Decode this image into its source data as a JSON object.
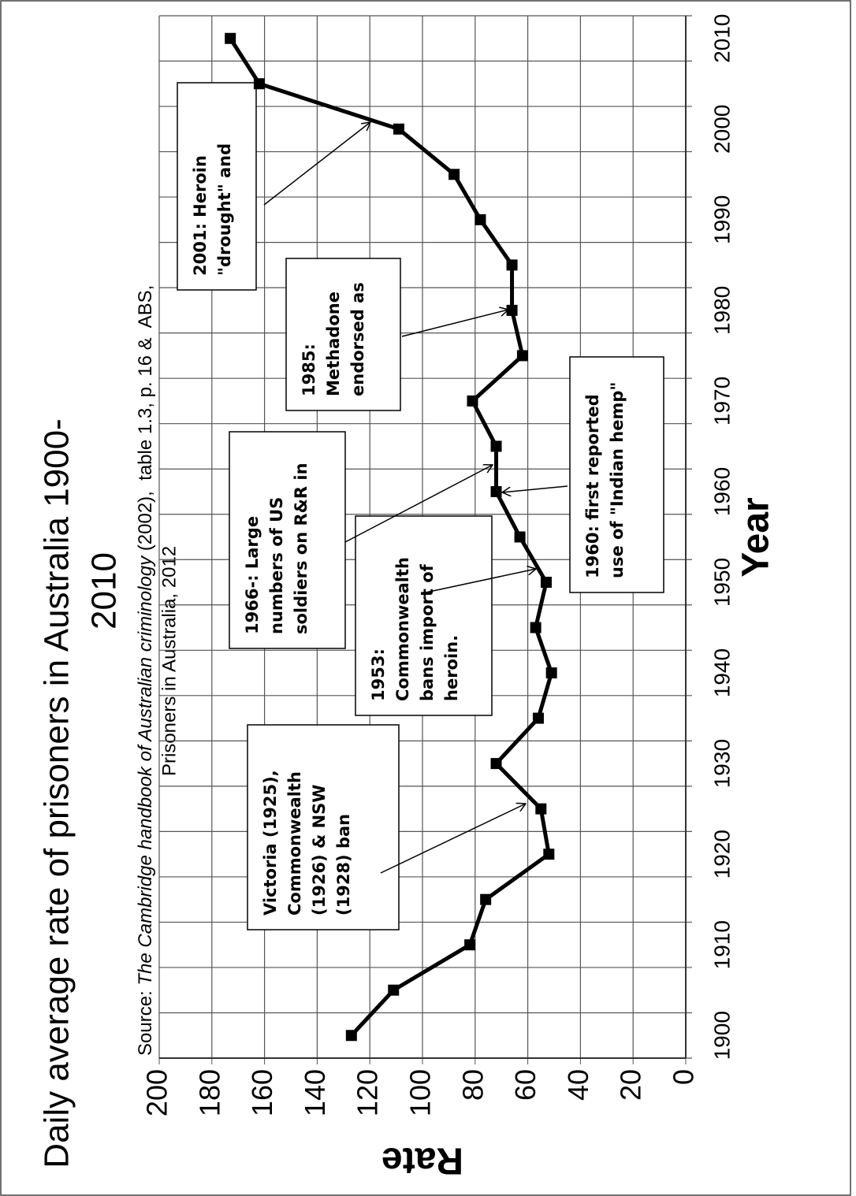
{
  "chart_data": {
    "type": "line",
    "title": [
      "Daily average rate of prisoners in Australia 1900-",
      "2010"
    ],
    "source": [
      "Source: ",
      "The Cambridge handbook of Australian criminology",
      " (2002),  table 1.3, p. 16 &  ABS,",
      "Prisoners in Australia, 2012"
    ],
    "x_label": "Year",
    "y_label": "Rate",
    "categories": [
      "1900",
      null,
      "1910",
      null,
      "1920",
      null,
      "1930",
      null,
      "1940",
      null,
      "1950",
      null,
      "1960",
      null,
      "1970",
      null,
      "1980",
      null,
      "1990",
      null,
      "2000",
      null,
      "2010"
    ],
    "values": [
      127,
      111,
      82,
      76,
      52,
      55,
      72,
      56,
      51,
      57,
      53,
      63,
      72,
      72,
      81,
      62,
      66,
      66,
      78,
      88,
      109,
      162,
      173
    ],
    "color": "#000000",
    "ylim": [
      0,
      200
    ],
    "yticks": [
      0,
      20,
      40,
      60,
      80,
      100,
      120,
      140,
      160,
      180,
      200
    ],
    "grid": true,
    "annotations": [
      [
        "Victoria (1925),",
        "Commonwealth",
        "(1926) & NSW",
        "(1928) ban"
      ],
      [
        "1953:",
        "Commonwealth",
        "bans import of",
        "heroin."
      ],
      [
        "1966-: Large",
        "numbers of US",
        "soldiers on R&R in"
      ],
      [
        "1960: first reported",
        "use of \"Indian hemp\""
      ],
      [
        "1985:",
        "Methadone",
        "endorsed as"
      ],
      [
        "2001: Heroin",
        "\"drought\" and"
      ]
    ]
  }
}
